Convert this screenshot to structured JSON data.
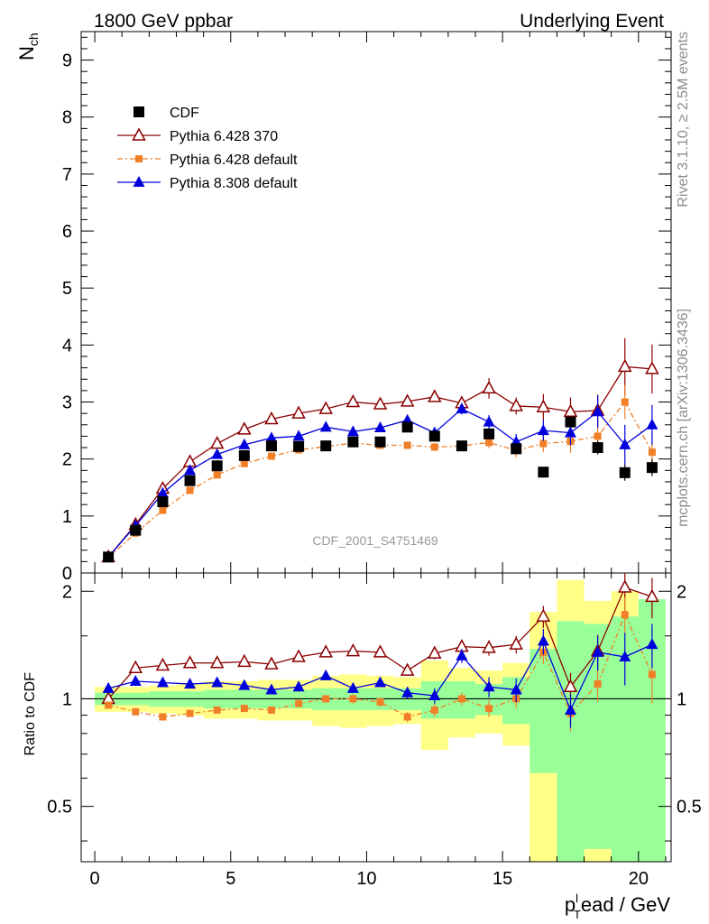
{
  "header": {
    "left": "1800 GeV ppbar",
    "right": "Underlying Event"
  },
  "side_text": {
    "top": "Rivet 3.1.10, ≥ 2.5M events",
    "bottom": "mcplots.cern.ch [arXiv:1306.3436]"
  },
  "watermark": "CDF_2001_S4751469",
  "colors": {
    "cdf": "#000000",
    "py6_370": "#8b0000",
    "py6_default": "#f07f28",
    "py8": "#0000dd",
    "band_green": "#99ff99",
    "band_yellow": "#ffff88"
  },
  "chart_data": [
    {
      "type": "scatter",
      "panel": "main",
      "ylabel_main": "N",
      "ylabel_sub": "ch",
      "xlim": [
        -0.5,
        21.2
      ],
      "ylim": [
        0,
        9.5
      ],
      "yticks": [
        "0",
        "1",
        "2",
        "3",
        "4",
        "5",
        "6",
        "7",
        "8",
        "9"
      ],
      "x": [
        0.5,
        1.5,
        2.5,
        3.5,
        4.5,
        5.5,
        6.5,
        7.5,
        8.5,
        9.5,
        10.5,
        11.5,
        12.5,
        13.5,
        14.5,
        15.5,
        16.5,
        17.5,
        18.5,
        19.5,
        20.5
      ],
      "legend": [
        "CDF",
        "Pythia 6.428 370",
        "Pythia 6.428 default",
        "Pythia 8.308 default"
      ],
      "series": [
        {
          "name": "CDF",
          "marker": "square",
          "style": "none",
          "values": [
            0.28,
            0.75,
            1.25,
            1.62,
            1.88,
            2.06,
            2.23,
            2.22,
            2.23,
            2.3,
            2.3,
            2.56,
            2.4,
            2.23,
            2.44,
            2.18,
            1.77,
            2.65,
            2.2,
            1.76,
            1.85
          ],
          "errors": [
            0.01,
            0.02,
            0.02,
            0.02,
            0.02,
            0.02,
            0.02,
            0.02,
            0.02,
            0.03,
            0.03,
            0.03,
            0.04,
            0.05,
            0.06,
            0.08,
            0.09,
            0.1,
            0.12,
            0.14,
            0.15
          ]
        },
        {
          "name": "Pythia 6.428 370",
          "marker": "open-triangle",
          "style": "solid",
          "values": [
            0.28,
            0.85,
            1.48,
            1.95,
            2.27,
            2.52,
            2.7,
            2.8,
            2.88,
            3.0,
            2.96,
            3.01,
            3.09,
            2.98,
            3.24,
            2.93,
            2.91,
            2.83,
            2.85,
            3.62,
            3.58
          ],
          "errors": [
            0.01,
            0.02,
            0.03,
            0.03,
            0.04,
            0.04,
            0.05,
            0.05,
            0.06,
            0.06,
            0.07,
            0.08,
            0.09,
            0.1,
            0.18,
            0.15,
            0.23,
            0.25,
            0.28,
            0.5,
            0.43
          ]
        },
        {
          "name": "Pythia 6.428 default",
          "marker": "small-square",
          "style": "dashdot",
          "values": [
            0.27,
            0.7,
            1.1,
            1.45,
            1.72,
            1.92,
            2.05,
            2.16,
            2.22,
            2.28,
            2.24,
            2.24,
            2.21,
            2.23,
            2.29,
            2.15,
            2.27,
            2.31,
            2.4,
            3.0,
            2.12
          ],
          "errors": [
            0.01,
            0.02,
            0.02,
            0.03,
            0.03,
            0.03,
            0.04,
            0.04,
            0.05,
            0.05,
            0.06,
            0.06,
            0.07,
            0.08,
            0.1,
            0.12,
            0.15,
            0.2,
            0.25,
            0.3,
            0.35
          ]
        },
        {
          "name": "Pythia 8.308 default",
          "marker": "triangle",
          "style": "solid",
          "values": [
            0.28,
            0.83,
            1.4,
            1.8,
            2.08,
            2.25,
            2.37,
            2.4,
            2.56,
            2.48,
            2.55,
            2.68,
            2.46,
            2.88,
            2.65,
            2.3,
            2.5,
            2.46,
            2.83,
            2.25,
            2.6
          ],
          "errors": [
            0.01,
            0.02,
            0.03,
            0.03,
            0.04,
            0.04,
            0.05,
            0.05,
            0.06,
            0.06,
            0.07,
            0.08,
            0.09,
            0.1,
            0.12,
            0.14,
            0.18,
            0.22,
            0.28,
            0.35,
            0.35
          ]
        }
      ]
    },
    {
      "type": "scatter",
      "panel": "ratio",
      "ylabel": "Ratio to CDF",
      "xlabel_main": "p",
      "xlabel_sub": "T",
      "xlabel_sup": "l",
      "xlabel_rest": "ead / GeV",
      "xlim": [
        -0.5,
        21.2
      ],
      "ylim": [
        0.35,
        2.25
      ],
      "yticks": [
        "0.5",
        "1",
        "2"
      ],
      "xticks": [
        "0",
        "5",
        "10",
        "15",
        "20"
      ],
      "x": [
        0.5,
        1.5,
        2.5,
        3.5,
        4.5,
        5.5,
        6.5,
        7.5,
        8.5,
        9.5,
        10.5,
        11.5,
        12.5,
        13.5,
        14.5,
        15.5,
        16.5,
        17.5,
        18.5,
        19.5,
        20.5
      ],
      "band_green_halfwidth": [
        0.04,
        0.04,
        0.05,
        0.05,
        0.06,
        0.06,
        0.06,
        0.06,
        0.07,
        0.07,
        0.07,
        0.07,
        0.12,
        0.12,
        0.1,
        0.15,
        0.38,
        0.65,
        0.62,
        0.7,
        0.9
      ],
      "band_yellow_halfwidth": [
        0.08,
        0.08,
        0.09,
        0.1,
        0.12,
        0.12,
        0.13,
        0.13,
        0.16,
        0.17,
        0.16,
        0.15,
        0.28,
        0.22,
        0.2,
        0.26,
        0.75,
        1.15,
        0.88,
        1.0,
        0.8
      ],
      "series": [
        {
          "name": "Pythia 6.428 370",
          "marker": "open-triangle",
          "style": "solid",
          "values": [
            1.0,
            1.22,
            1.24,
            1.26,
            1.26,
            1.27,
            1.25,
            1.31,
            1.35,
            1.36,
            1.35,
            1.2,
            1.34,
            1.4,
            1.39,
            1.42,
            1.7,
            1.08,
            1.36,
            2.05,
            1.93
          ],
          "errors": [
            0.01,
            0.02,
            0.02,
            0.02,
            0.03,
            0.03,
            0.03,
            0.03,
            0.03,
            0.03,
            0.03,
            0.03,
            0.05,
            0.05,
            0.07,
            0.08,
            0.12,
            0.1,
            0.15,
            0.3,
            0.25
          ]
        },
        {
          "name": "Pythia 6.428 default",
          "marker": "small-square",
          "style": "dashdot",
          "values": [
            0.96,
            0.92,
            0.89,
            0.91,
            0.93,
            0.94,
            0.93,
            0.97,
            1.0,
            1.0,
            0.98,
            0.89,
            0.93,
            1.0,
            0.94,
            1.0,
            1.35,
            0.91,
            1.1,
            1.72,
            1.17
          ],
          "errors": [
            0.01,
            0.01,
            0.02,
            0.02,
            0.02,
            0.02,
            0.02,
            0.02,
            0.02,
            0.03,
            0.03,
            0.03,
            0.04,
            0.04,
            0.05,
            0.06,
            0.1,
            0.1,
            0.12,
            0.2,
            0.2
          ]
        },
        {
          "name": "Pythia 8.308 default",
          "marker": "triangle",
          "style": "solid",
          "values": [
            1.07,
            1.12,
            1.11,
            1.1,
            1.11,
            1.09,
            1.06,
            1.08,
            1.16,
            1.07,
            1.11,
            1.04,
            1.02,
            1.32,
            1.08,
            1.06,
            1.45,
            0.93,
            1.35,
            1.31,
            1.42
          ],
          "errors": [
            0.01,
            0.02,
            0.02,
            0.02,
            0.02,
            0.02,
            0.02,
            0.03,
            0.03,
            0.03,
            0.03,
            0.04,
            0.05,
            0.06,
            0.07,
            0.08,
            0.12,
            0.1,
            0.15,
            0.22,
            0.2
          ]
        }
      ]
    }
  ]
}
